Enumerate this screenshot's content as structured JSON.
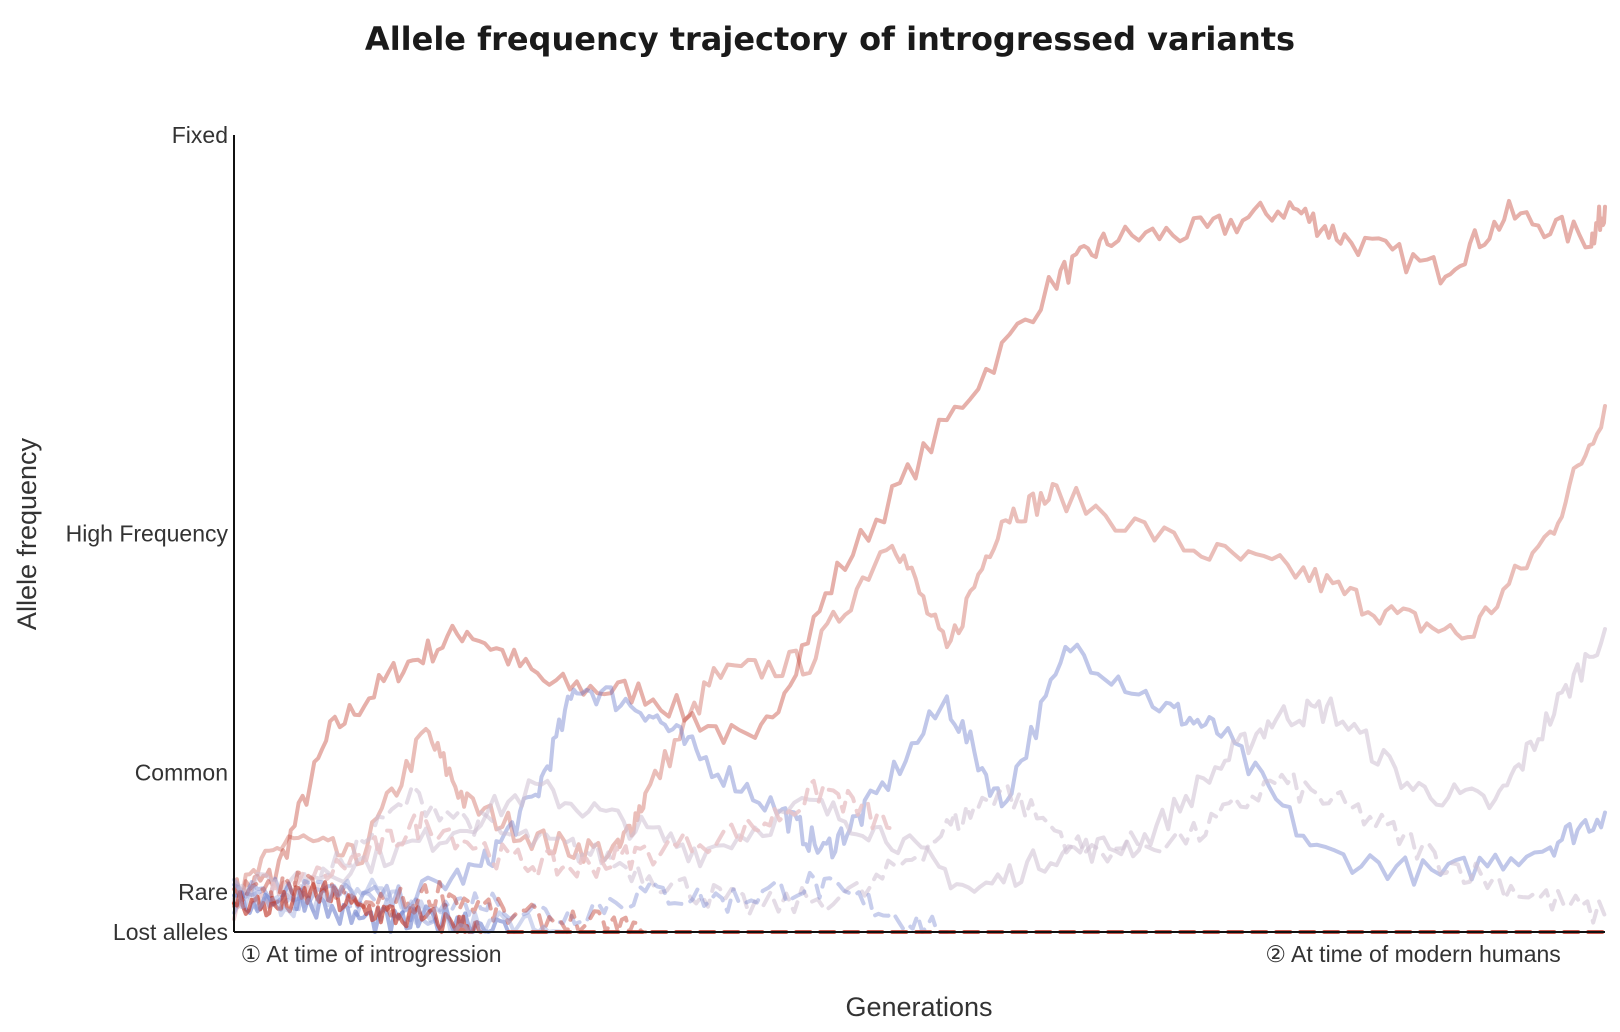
{
  "chart_data": {
    "type": "line",
    "title": "Allele frequency trajectory of introgressed variants",
    "xlabel": "Generations",
    "ylabel": "Allele frequency",
    "xlim": [
      0,
      1000
    ],
    "ylim": [
      0,
      1
    ],
    "y_ticks": [
      {
        "label": "Lost alleles",
        "value": 0
      },
      {
        "label": "Rare",
        "value": 0.05
      },
      {
        "label": "Common",
        "value": 0.2
      },
      {
        "label": "High Frequency",
        "value": 0.5
      },
      {
        "label": "Fixed",
        "value": 1
      }
    ],
    "x_ticks": [
      {
        "label": "① At time of introgression",
        "value": 100
      },
      {
        "label": "② At time of modern humans",
        "value": 860
      }
    ],
    "grid": false,
    "legend": "none",
    "series": [
      {
        "color": "#c0392b",
        "opacity": 0.4,
        "dash": "solid",
        "x": [
          0,
          30,
          70,
          120,
          170,
          230,
          300,
          380,
          440,
          520,
          600,
          640,
          710,
          770,
          810,
          880,
          930,
          990,
          1000
        ],
        "y": [
          0.05,
          0.07,
          0.25,
          0.33,
          0.38,
          0.31,
          0.3,
          0.23,
          0.45,
          0.64,
          0.82,
          0.87,
          0.88,
          0.91,
          0.87,
          0.83,
          0.9,
          0.87,
          0.91
        ]
      },
      {
        "color": "#c0392b",
        "opacity": 0.33,
        "dash": "solid",
        "x": [
          0,
          40,
          90,
          140,
          170,
          230,
          280,
          300,
          350,
          420,
          480,
          520,
          560,
          600,
          700,
          780,
          840,
          900,
          960,
          1000
        ],
        "y": [
          0.04,
          0.12,
          0.09,
          0.25,
          0.16,
          0.11,
          0.1,
          0.17,
          0.32,
          0.34,
          0.5,
          0.35,
          0.52,
          0.55,
          0.48,
          0.45,
          0.4,
          0.37,
          0.5,
          0.66
        ]
      },
      {
        "color": "#6174c9",
        "opacity": 0.4,
        "dash": "solid",
        "x": [
          0,
          60,
          120,
          180,
          220,
          250,
          300,
          340,
          400,
          430,
          460,
          520,
          560,
          610,
          680,
          720,
          790,
          880,
          960,
          1000
        ],
        "y": [
          0.06,
          0.05,
          0.04,
          0.08,
          0.17,
          0.31,
          0.28,
          0.22,
          0.15,
          0.1,
          0.15,
          0.29,
          0.16,
          0.36,
          0.28,
          0.25,
          0.1,
          0.07,
          0.11,
          0.15
        ]
      },
      {
        "color": "#cdbfd1",
        "opacity": 0.55,
        "dash": "solid",
        "x": [
          0,
          80,
          150,
          220,
          280,
          340,
          420,
          480,
          540,
          600,
          660,
          720,
          760,
          800,
          860,
          920,
          960,
          1000
        ],
        "y": [
          0.05,
          0.08,
          0.12,
          0.18,
          0.14,
          0.1,
          0.16,
          0.12,
          0.05,
          0.1,
          0.11,
          0.21,
          0.27,
          0.28,
          0.18,
          0.16,
          0.27,
          0.38
        ]
      },
      {
        "color": "#cdbfd1",
        "opacity": 0.55,
        "dash": "dashed",
        "x": [
          0,
          60,
          130,
          200,
          260,
          320,
          380,
          460,
          520,
          560,
          620,
          700,
          760,
          820,
          880,
          940,
          1000
        ],
        "y": [
          0.04,
          0.06,
          0.17,
          0.12,
          0.1,
          0.06,
          0.03,
          0.05,
          0.13,
          0.18,
          0.1,
          0.12,
          0.19,
          0.15,
          0.09,
          0.05,
          0.02
        ]
      },
      {
        "color": "#e8c3c7",
        "opacity": 0.8,
        "dash": "dashed",
        "x": [
          0,
          50,
          100,
          140,
          200,
          250,
          300,
          380,
          430,
          480
        ],
        "y": [
          0.03,
          0.06,
          0.1,
          0.14,
          0.09,
          0.08,
          0.1,
          0.13,
          0.18,
          0.13
        ]
      },
      {
        "color": "#6174c9",
        "opacity": 0.35,
        "dash": "dashed",
        "x": [
          0,
          60,
          120,
          180,
          240,
          300,
          360,
          420,
          470,
          520
        ],
        "y": [
          0.03,
          0.05,
          0.02,
          0.04,
          0.02,
          0.05,
          0.04,
          0.06,
          0.03,
          0
        ]
      },
      {
        "color": "#6174c9",
        "opacity": 0.55,
        "dash": "solid",
        "x": [
          0,
          40,
          80,
          120,
          160,
          200
        ],
        "y": [
          0.03,
          0.05,
          0.02,
          0.01,
          0.02,
          0
        ]
      },
      {
        "color": "#c0392b",
        "opacity": 0.65,
        "dash": "solid",
        "x": [
          0,
          30,
          60,
          90,
          120,
          160,
          180
        ],
        "y": [
          0.04,
          0.03,
          0.05,
          0.03,
          0.02,
          0.01,
          0
        ]
      },
      {
        "color": "#c0392b",
        "opacity": 0.45,
        "dash": "dashed",
        "x": [
          0,
          50,
          100,
          150,
          200,
          260,
          300
        ],
        "y": [
          0.04,
          0.06,
          0.03,
          0.05,
          0.02,
          0.01,
          0
        ]
      },
      {
        "color": "#9aa6dc",
        "opacity": 0.45,
        "dash": "solid",
        "x": [
          0,
          40,
          90,
          140,
          190,
          240
        ],
        "y": [
          0.05,
          0.03,
          0.06,
          0.02,
          0.01,
          0
        ]
      },
      {
        "color": "#c0392b",
        "opacity": 0.85,
        "dash": "dashed",
        "x": [
          200,
          1000
        ],
        "y": [
          0,
          0
        ]
      }
    ]
  }
}
